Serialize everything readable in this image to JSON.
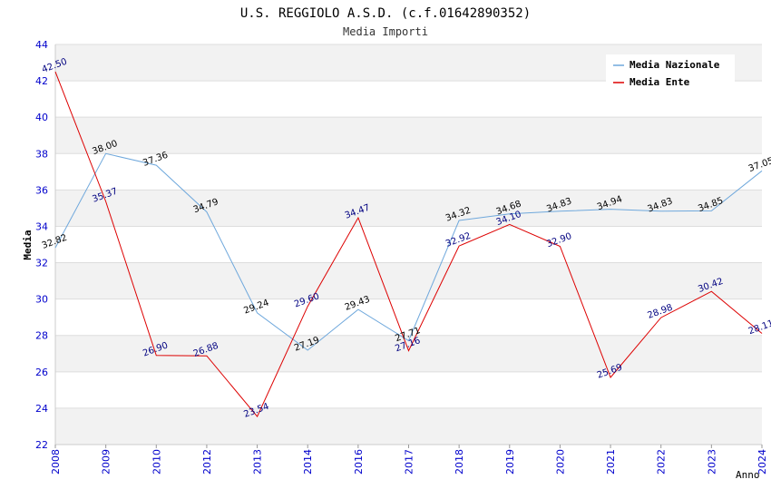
{
  "chart_data": {
    "type": "line",
    "title": "U.S. REGGIOLO A.S.D. (c.f.01642890352)",
    "subtitle": "Media Importi",
    "xlabel": "Anno",
    "ylabel": "Media",
    "ylim": [
      22,
      44
    ],
    "yticks": [
      "22",
      "24",
      "26",
      "28",
      "30",
      "32",
      "34",
      "36",
      "38",
      "40",
      "42",
      "44"
    ],
    "categories": [
      "2008",
      "2009",
      "2010",
      "2012",
      "2013",
      "2014",
      "2016",
      "2017",
      "2018",
      "2019",
      "2020",
      "2021",
      "2022",
      "2023",
      "2024"
    ],
    "series": [
      {
        "name": "Media Nazionale",
        "color": "#6fa8dc",
        "label_color": "#000000",
        "values": [
          32.82,
          38.0,
          37.36,
          34.79,
          29.24,
          27.19,
          29.43,
          27.71,
          34.32,
          34.68,
          34.83,
          34.94,
          34.83,
          34.85,
          37.05
        ],
        "labels": [
          "32.82",
          "38.00",
          "37.36",
          "34.79",
          "29.24",
          "27.19",
          "29.43",
          "27.71",
          "34.32",
          "34.68",
          "34.83",
          "34.94",
          "34.83",
          "34.85",
          "37.05"
        ]
      },
      {
        "name": "Media Ente",
        "color": "#dd0000",
        "label_color": "#000080",
        "values": [
          42.5,
          35.37,
          26.9,
          26.88,
          23.54,
          29.6,
          34.47,
          27.16,
          32.92,
          34.1,
          32.9,
          25.69,
          28.98,
          30.42,
          28.11
        ],
        "labels": [
          "42.50",
          "35.37",
          "26.90",
          "26.88",
          "23.54",
          "29.60",
          "34.47",
          "27.16",
          "32.92",
          "34.10",
          "32.90",
          "25.69",
          "28.98",
          "30.42",
          "28.11"
        ]
      }
    ],
    "legend_position": "top-right",
    "grid": true
  }
}
